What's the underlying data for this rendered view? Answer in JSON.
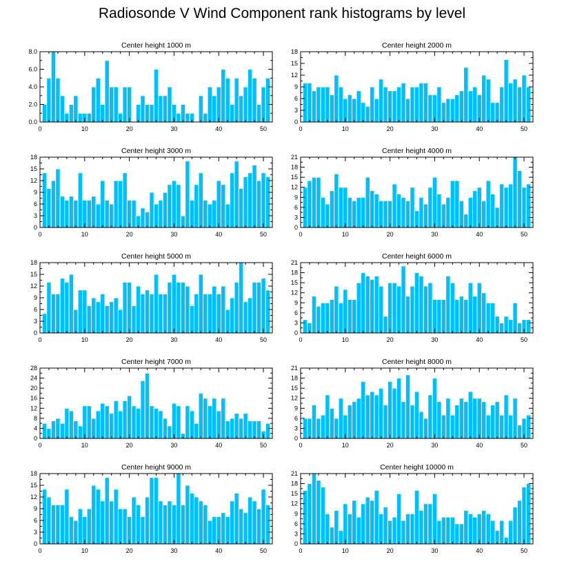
{
  "title": "Radiosonde V Wind Component rank histograms by level",
  "colors": {
    "bar": "#00bfff",
    "bar_edge": "#ffffff",
    "axis": "#000000",
    "background": "#ffffff"
  },
  "chart_data": [
    {
      "type": "bar",
      "title": "Center height 1000 m",
      "xlabel": "",
      "ylabel": "",
      "xlim": [
        0,
        52
      ],
      "ylim": [
        0,
        8
      ],
      "xticks": [
        0,
        10,
        20,
        30,
        40,
        50
      ],
      "xtick_labels": [
        "0",
        "10",
        "20",
        "30",
        "40",
        "50"
      ],
      "yticks": [
        0,
        2,
        4,
        6,
        8
      ],
      "ytick_labels": [
        "0.0",
        "2.0",
        "4.0",
        "6.0",
        "8.0"
      ],
      "x": [
        1,
        2,
        3,
        4,
        5,
        6,
        7,
        8,
        9,
        10,
        11,
        12,
        13,
        14,
        15,
        16,
        17,
        18,
        19,
        20,
        21,
        22,
        23,
        24,
        25,
        26,
        27,
        28,
        29,
        30,
        31,
        32,
        33,
        34,
        35,
        36,
        37,
        38,
        39,
        40,
        41,
        42,
        43,
        44,
        45,
        46,
        47,
        48,
        49,
        50,
        51
      ],
      "values": [
        2,
        5,
        8,
        5,
        3,
        1,
        2,
        3,
        1,
        1,
        1,
        4,
        5,
        2,
        7,
        4,
        4,
        1,
        4,
        4,
        0,
        2,
        3,
        2,
        2,
        6,
        3,
        3,
        4,
        2,
        1,
        2,
        1,
        1,
        0,
        3,
        1,
        4,
        3,
        4,
        6,
        5,
        2,
        5,
        3,
        4,
        6,
        5,
        2,
        4,
        5
      ]
    },
    {
      "type": "bar",
      "title": "Center height 2000 m",
      "xlabel": "",
      "ylabel": "",
      "xlim": [
        0,
        52
      ],
      "ylim": [
        0,
        18
      ],
      "xticks": [
        0,
        10,
        20,
        30,
        40,
        50
      ],
      "xtick_labels": [
        "0",
        "10",
        "20",
        "30",
        "40",
        "50"
      ],
      "yticks": [
        0,
        3,
        6,
        9,
        12,
        15,
        18
      ],
      "ytick_labels": [
        "0",
        "3",
        "6",
        "9",
        "12",
        "15",
        "18"
      ],
      "x": [
        1,
        2,
        3,
        4,
        5,
        6,
        7,
        8,
        9,
        10,
        11,
        12,
        13,
        14,
        15,
        16,
        17,
        18,
        19,
        20,
        21,
        22,
        23,
        24,
        25,
        26,
        27,
        28,
        29,
        30,
        31,
        32,
        33,
        34,
        35,
        36,
        37,
        38,
        39,
        40,
        41,
        42,
        43,
        44,
        45,
        46,
        47,
        48,
        49,
        50,
        51
      ],
      "values": [
        10,
        10,
        8,
        9,
        9,
        9,
        7,
        12,
        9,
        6,
        7,
        6,
        8,
        5,
        4,
        9,
        6,
        11,
        9,
        8,
        8,
        9,
        10,
        6,
        9,
        9,
        10,
        10,
        7,
        7,
        9,
        5,
        6,
        6,
        7,
        8,
        14,
        8,
        9,
        7,
        12,
        11,
        5,
        5,
        9,
        16,
        10,
        11,
        9,
        12,
        9
      ]
    },
    {
      "type": "bar",
      "title": "Center height 3000 m",
      "xlabel": "",
      "ylabel": "",
      "xlim": [
        0,
        52
      ],
      "ylim": [
        0,
        18
      ],
      "xticks": [
        0,
        10,
        20,
        30,
        40,
        50
      ],
      "xtick_labels": [
        "0",
        "10",
        "20",
        "30",
        "40",
        "50"
      ],
      "yticks": [
        0,
        3,
        6,
        9,
        12,
        15,
        18
      ],
      "ytick_labels": [
        "0",
        "3",
        "6",
        "9",
        "12",
        "15",
        "18"
      ],
      "x": [
        1,
        2,
        3,
        4,
        5,
        6,
        7,
        8,
        9,
        10,
        11,
        12,
        13,
        14,
        15,
        16,
        17,
        18,
        19,
        20,
        21,
        22,
        23,
        24,
        25,
        26,
        27,
        28,
        29,
        30,
        31,
        32,
        33,
        34,
        35,
        36,
        37,
        38,
        39,
        40,
        41,
        42,
        43,
        44,
        45,
        46,
        47,
        48,
        49,
        50,
        51
      ],
      "values": [
        14,
        10,
        12,
        15,
        8,
        7,
        8,
        7,
        14,
        7,
        7,
        8,
        6,
        12,
        7,
        6,
        12,
        12,
        14,
        7,
        7,
        3,
        5,
        4,
        9,
        6,
        7,
        9,
        11,
        12,
        11,
        3,
        17,
        7,
        11,
        14,
        7,
        6,
        7,
        12,
        11,
        6,
        14,
        17,
        10,
        13,
        14,
        16,
        12,
        14,
        13
      ]
    },
    {
      "type": "bar",
      "title": "Center height 4000 m",
      "xlabel": "",
      "ylabel": "",
      "xlim": [
        0,
        52
      ],
      "ylim": [
        0,
        21
      ],
      "xticks": [
        0,
        10,
        20,
        30,
        40,
        50
      ],
      "xtick_labels": [
        "0",
        "10",
        "20",
        "30",
        "40",
        "50"
      ],
      "yticks": [
        0,
        3,
        6,
        9,
        12,
        15,
        18,
        21
      ],
      "ytick_labels": [
        "0",
        "3",
        "6",
        "9",
        "12",
        "15",
        "18",
        "21"
      ],
      "x": [
        1,
        2,
        3,
        4,
        5,
        6,
        7,
        8,
        9,
        10,
        11,
        12,
        13,
        14,
        15,
        16,
        17,
        18,
        19,
        20,
        21,
        22,
        23,
        24,
        25,
        26,
        27,
        28,
        29,
        30,
        31,
        32,
        33,
        34,
        35,
        36,
        37,
        38,
        39,
        40,
        41,
        42,
        43,
        44,
        45,
        46,
        47,
        48,
        49,
        50,
        51
      ],
      "values": [
        12,
        14,
        15,
        15,
        9,
        7,
        11,
        16,
        12,
        12,
        9,
        8,
        9,
        9,
        15,
        11,
        10,
        8,
        8,
        8,
        13,
        10,
        9,
        8,
        12,
        5,
        9,
        7,
        12,
        15,
        10,
        7,
        9,
        14,
        14,
        8,
        4,
        9,
        11,
        12,
        8,
        14,
        10,
        6,
        13,
        12,
        13,
        21,
        17,
        12,
        13
      ]
    },
    {
      "type": "bar",
      "title": "Center height 5000 m",
      "xlabel": "",
      "ylabel": "",
      "xlim": [
        0,
        52
      ],
      "ylim": [
        0,
        18
      ],
      "xticks": [
        0,
        10,
        20,
        30,
        40,
        50
      ],
      "xtick_labels": [
        "0",
        "10",
        "20",
        "30",
        "40",
        "50"
      ],
      "yticks": [
        0,
        3,
        6,
        9,
        12,
        15,
        18
      ],
      "ytick_labels": [
        "0",
        "3",
        "6",
        "9",
        "12",
        "15",
        "18"
      ],
      "x": [
        1,
        2,
        3,
        4,
        5,
        6,
        7,
        8,
        9,
        10,
        11,
        12,
        13,
        14,
        15,
        16,
        17,
        18,
        19,
        20,
        21,
        22,
        23,
        24,
        25,
        26,
        27,
        28,
        29,
        30,
        31,
        32,
        33,
        34,
        35,
        36,
        37,
        38,
        39,
        40,
        41,
        42,
        43,
        44,
        45,
        46,
        47,
        48,
        49,
        50,
        51
      ],
      "values": [
        5,
        13,
        10,
        10,
        14,
        13,
        15,
        6,
        11,
        11,
        7,
        9,
        8,
        10,
        7,
        8,
        9,
        6,
        13,
        13,
        7,
        12,
        10,
        11,
        10,
        15,
        10,
        10,
        13,
        15,
        13,
        13,
        12,
        7,
        10,
        15,
        10,
        10,
        12,
        10,
        12,
        6,
        9,
        13,
        18,
        8,
        9,
        13,
        13,
        14,
        11
      ]
    },
    {
      "type": "bar",
      "title": "Center height 6000 m",
      "xlabel": "",
      "ylabel": "",
      "xlim": [
        0,
        52
      ],
      "ylim": [
        0,
        21
      ],
      "xticks": [
        0,
        10,
        20,
        30,
        40,
        50
      ],
      "xtick_labels": [
        "0",
        "10",
        "20",
        "30",
        "40",
        "50"
      ],
      "yticks": [
        0,
        3,
        6,
        9,
        12,
        15,
        18,
        21
      ],
      "ytick_labels": [
        "0",
        "3",
        "6",
        "9",
        "12",
        "15",
        "18",
        "21"
      ],
      "x": [
        1,
        2,
        3,
        4,
        5,
        6,
        7,
        8,
        9,
        10,
        11,
        12,
        13,
        14,
        15,
        16,
        17,
        18,
        19,
        20,
        21,
        22,
        23,
        24,
        25,
        26,
        27,
        28,
        29,
        30,
        31,
        32,
        33,
        34,
        35,
        36,
        37,
        38,
        39,
        40,
        41,
        42,
        43,
        44,
        45,
        46,
        47,
        48,
        49,
        50,
        51
      ],
      "values": [
        4,
        3,
        11,
        8,
        9,
        9,
        10,
        14,
        9,
        13,
        10,
        10,
        15,
        18,
        17,
        16,
        17,
        14,
        5,
        15,
        15,
        14,
        20,
        11,
        14,
        18,
        17,
        14,
        15,
        10,
        10,
        10,
        17,
        15,
        10,
        11,
        10,
        15,
        11,
        15,
        12,
        9,
        9,
        5,
        3,
        5,
        4,
        9,
        3,
        4,
        4
      ]
    },
    {
      "type": "bar",
      "title": "Center height 7000 m",
      "xlabel": "",
      "ylabel": "",
      "xlim": [
        0,
        52
      ],
      "ylim": [
        0,
        28
      ],
      "xticks": [
        0,
        10,
        20,
        30,
        40,
        50
      ],
      "xtick_labels": [
        "0",
        "10",
        "20",
        "30",
        "40",
        "50"
      ],
      "yticks": [
        0,
        4,
        8,
        12,
        16,
        20,
        24,
        28
      ],
      "ytick_labels": [
        "0",
        "4",
        "8",
        "12",
        "16",
        "20",
        "24",
        "28"
      ],
      "x": [
        1,
        2,
        3,
        4,
        5,
        6,
        7,
        8,
        9,
        10,
        11,
        12,
        13,
        14,
        15,
        16,
        17,
        18,
        19,
        20,
        21,
        22,
        23,
        24,
        25,
        26,
        27,
        28,
        29,
        30,
        31,
        32,
        33,
        34,
        35,
        36,
        37,
        38,
        39,
        40,
        41,
        42,
        43,
        44,
        45,
        46,
        47,
        48,
        49,
        50,
        51
      ],
      "values": [
        6,
        4,
        7,
        8,
        6,
        12,
        11,
        7,
        5,
        13,
        13,
        8,
        11,
        14,
        13,
        10,
        15,
        11,
        15,
        17,
        13,
        12,
        23,
        26,
        13,
        12,
        11,
        8,
        5,
        14,
        13,
        2,
        13,
        11,
        6,
        18,
        16,
        13,
        16,
        11,
        16,
        7,
        8,
        10,
        8,
        10,
        7,
        7,
        7,
        3,
        6
      ]
    },
    {
      "type": "bar",
      "title": "Center height 8000 m",
      "xlabel": "",
      "ylabel": "",
      "xlim": [
        0,
        52
      ],
      "ylim": [
        0,
        21
      ],
      "xticks": [
        0,
        10,
        20,
        30,
        40,
        50
      ],
      "xtick_labels": [
        "0",
        "10",
        "20",
        "30",
        "40",
        "50"
      ],
      "yticks": [
        0,
        3,
        6,
        9,
        12,
        15,
        18,
        21
      ],
      "ytick_labels": [
        "0",
        "3",
        "6",
        "9",
        "12",
        "15",
        "18",
        "21"
      ],
      "x": [
        1,
        2,
        3,
        4,
        5,
        6,
        7,
        8,
        9,
        10,
        11,
        12,
        13,
        14,
        15,
        16,
        17,
        18,
        19,
        20,
        21,
        22,
        23,
        24,
        25,
        26,
        27,
        28,
        29,
        30,
        31,
        32,
        33,
        34,
        35,
        36,
        37,
        38,
        39,
        40,
        41,
        42,
        43,
        44,
        45,
        46,
        47,
        48,
        49,
        50,
        51
      ],
      "values": [
        6,
        6,
        10,
        6,
        7,
        13,
        9,
        6,
        12,
        7,
        10,
        11,
        12,
        17,
        13,
        14,
        13,
        15,
        10,
        17,
        15,
        18,
        11,
        19,
        10,
        14,
        8,
        6,
        13,
        18,
        11,
        7,
        12,
        7,
        10,
        12,
        11,
        14,
        12,
        12,
        11,
        7,
        10,
        11,
        7,
        13,
        7,
        12,
        4,
        6,
        7
      ]
    },
    {
      "type": "bar",
      "title": "Center height 9000 m",
      "xlabel": "",
      "ylabel": "",
      "xlim": [
        0,
        52
      ],
      "ylim": [
        0,
        18
      ],
      "xticks": [
        0,
        10,
        20,
        30,
        40,
        50
      ],
      "xtick_labels": [
        "0",
        "10",
        "20",
        "30",
        "40",
        "50"
      ],
      "yticks": [
        0,
        3,
        6,
        9,
        12,
        15,
        18
      ],
      "ytick_labels": [
        "0",
        "3",
        "6",
        "9",
        "12",
        "15",
        "18"
      ],
      "x": [
        1,
        2,
        3,
        4,
        5,
        6,
        7,
        8,
        9,
        10,
        11,
        12,
        13,
        14,
        15,
        16,
        17,
        18,
        19,
        20,
        21,
        22,
        23,
        24,
        25,
        26,
        27,
        28,
        29,
        30,
        31,
        32,
        33,
        34,
        35,
        36,
        37,
        38,
        39,
        40,
        41,
        42,
        43,
        44,
        45,
        46,
        47,
        48,
        49,
        50,
        51
      ],
      "values": [
        14,
        12,
        10,
        10,
        10,
        14,
        7,
        6,
        9,
        7,
        9,
        15,
        14,
        11,
        17,
        11,
        14,
        9,
        9,
        7,
        12,
        10,
        7,
        12,
        17,
        17,
        11,
        10,
        11,
        10,
        18,
        10,
        15,
        13,
        12,
        11,
        10,
        6,
        7,
        7,
        8,
        7,
        11,
        13,
        9,
        8,
        12,
        11,
        9,
        14,
        10
      ]
    },
    {
      "type": "bar",
      "title": "Center height 10000 m",
      "xlabel": "",
      "ylabel": "",
      "xlim": [
        0,
        52
      ],
      "ylim": [
        0,
        21
      ],
      "xticks": [
        0,
        10,
        20,
        30,
        40,
        50
      ],
      "xtick_labels": [
        "0",
        "10",
        "20",
        "30",
        "40",
        "50"
      ],
      "yticks": [
        0,
        3,
        6,
        9,
        12,
        15,
        18,
        21
      ],
      "ytick_labels": [
        "0",
        "3",
        "6",
        "9",
        "12",
        "15",
        "18",
        "21"
      ],
      "x": [
        1,
        2,
        3,
        4,
        5,
        6,
        7,
        8,
        9,
        10,
        11,
        12,
        13,
        14,
        15,
        16,
        17,
        18,
        19,
        20,
        21,
        22,
        23,
        24,
        25,
        26,
        27,
        28,
        29,
        30,
        31,
        32,
        33,
        34,
        35,
        36,
        37,
        38,
        39,
        40,
        41,
        42,
        43,
        44,
        45,
        46,
        47,
        48,
        49,
        50,
        51
      ],
      "values": [
        16,
        18,
        21,
        19,
        17,
        9,
        5,
        10,
        4,
        12,
        9,
        13,
        8,
        12,
        14,
        13,
        16,
        9,
        11,
        7,
        8,
        15,
        7,
        9,
        9,
        16,
        10,
        12,
        12,
        15,
        7,
        8,
        8,
        8,
        6,
        6,
        10,
        9,
        8,
        9,
        10,
        9,
        7,
        4,
        7,
        2,
        7,
        11,
        13,
        17,
        18
      ]
    }
  ]
}
